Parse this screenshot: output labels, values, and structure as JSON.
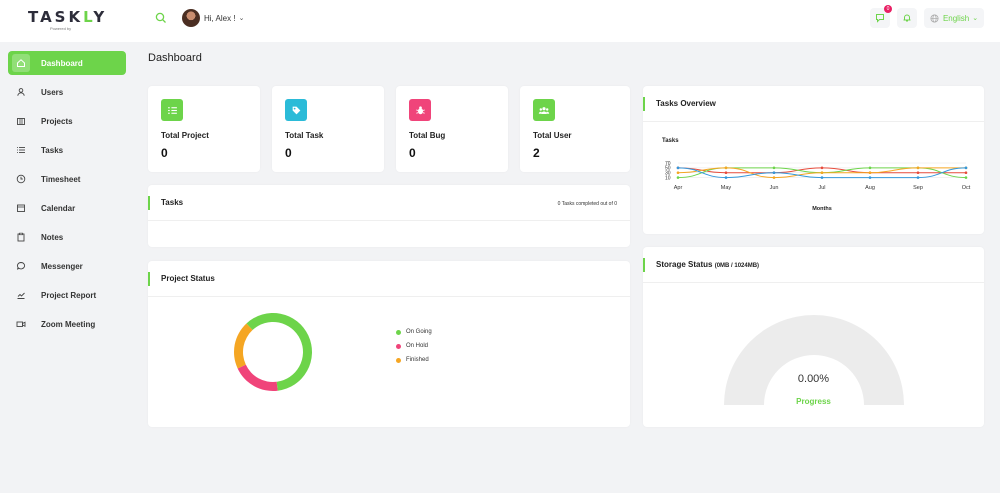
{
  "brand": {
    "name_part1": "TASK",
    "name_accent": "L",
    "name_part2": "Y",
    "tagline": "Powered by"
  },
  "header": {
    "greeting": "Hi, Alex !",
    "notification_count": "0",
    "language": "English",
    "icons": [
      "search-icon",
      "chat-icon",
      "bell-icon",
      "globe-icon",
      "chevron-down-icon"
    ]
  },
  "sidebar": {
    "items": [
      {
        "label": "Dashboard",
        "icon": "home-icon",
        "active": true
      },
      {
        "label": "Users",
        "icon": "user-icon"
      },
      {
        "label": "Projects",
        "icon": "building-icon"
      },
      {
        "label": "Tasks",
        "icon": "list-icon"
      },
      {
        "label": "Timesheet",
        "icon": "clock-icon"
      },
      {
        "label": "Calendar",
        "icon": "calendar-icon"
      },
      {
        "label": "Notes",
        "icon": "clipboard-icon"
      },
      {
        "label": "Messenger",
        "icon": "chat-bubble-icon"
      },
      {
        "label": "Project Report",
        "icon": "chart-icon"
      },
      {
        "label": "Zoom Meeting",
        "icon": "video-icon"
      }
    ]
  },
  "page": {
    "title": "Dashboard"
  },
  "stats": [
    {
      "label": "Total Project",
      "value": "0",
      "color": "#6dd44a",
      "icon": "list-check-icon"
    },
    {
      "label": "Total Task",
      "value": "0",
      "color": "#2bbbd8",
      "icon": "tag-icon"
    },
    {
      "label": "Total Bug",
      "value": "0",
      "color": "#f0447a",
      "icon": "bug-icon"
    },
    {
      "label": "Total User",
      "value": "2",
      "color": "#6dd44a",
      "icon": "users-icon"
    }
  ],
  "tasks_card": {
    "title": "Tasks",
    "summary": "0 Tasks completed out of 0"
  },
  "project_status": {
    "title": "Project Status",
    "legend": [
      {
        "label": "On Going",
        "color": "#6dd44a"
      },
      {
        "label": "On Hold",
        "color": "#f0447a"
      },
      {
        "label": "Finished",
        "color": "#f5a623"
      }
    ]
  },
  "tasks_overview": {
    "title": "Tasks Overview"
  },
  "storage": {
    "title": "Storage Status",
    "subtitle": "(0MB / 1024MB)",
    "value": "0.00%",
    "label": "Progress",
    "fraction": 0
  },
  "chart_data": [
    {
      "type": "pie",
      "title": "",
      "categories": [
        "On Going",
        "On Hold",
        "Finished"
      ],
      "values": [
        60,
        20,
        20
      ],
      "colors": [
        "#6dd44a",
        "#f0447a",
        "#f5a623"
      ]
    },
    {
      "type": "line",
      "title": "Tasks",
      "xlabel": "Months",
      "ylabel": "",
      "categories": [
        "Apr",
        "May",
        "Jun",
        "Jul",
        "Aug",
        "Sep",
        "Oct"
      ],
      "yticks": [
        "70",
        "50",
        "30",
        "10"
      ],
      "ylim": [
        0,
        70
      ],
      "grid": true,
      "series": [
        {
          "color": "#e74c3c",
          "values": [
            50,
            30,
            30,
            50,
            30,
            30,
            30
          ]
        },
        {
          "color": "#6dd44a",
          "values": [
            10,
            50,
            50,
            30,
            50,
            50,
            10
          ]
        },
        {
          "color": "#f5a623",
          "values": [
            30,
            50,
            10,
            30,
            30,
            50,
            50
          ]
        },
        {
          "color": "#3498db",
          "values": [
            50,
            10,
            30,
            10,
            10,
            10,
            50
          ]
        }
      ]
    }
  ]
}
